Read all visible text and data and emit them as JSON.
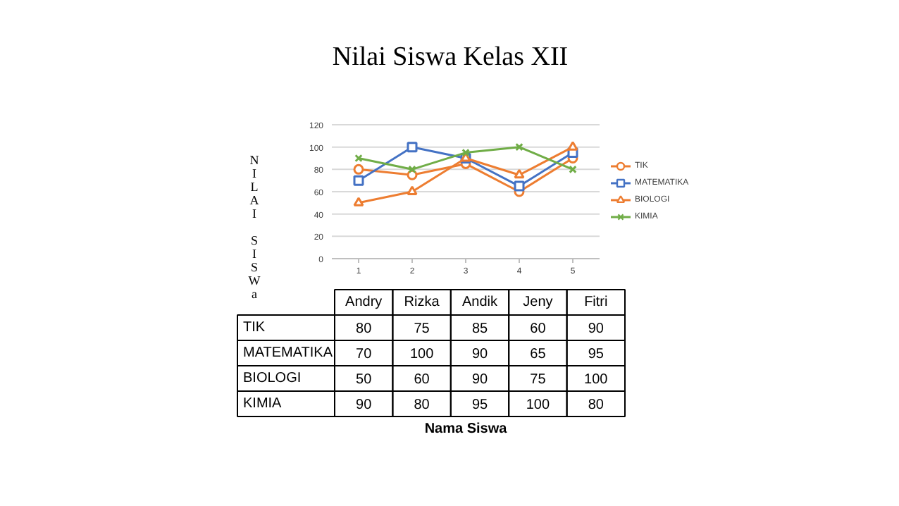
{
  "chart_data": {
    "type": "line",
    "title": "Nilai Siswa Kelas XII",
    "ylabel": "NILAI SISWa",
    "categories": [
      "1",
      "2",
      "3",
      "4",
      "5"
    ],
    "ylim": [
      0,
      120
    ],
    "yticks": [
      0,
      20,
      40,
      60,
      80,
      100,
      120
    ],
    "grid": "y",
    "legend": "right",
    "data_labels": true,
    "annotations": [
      "Andry",
      "Rizka",
      "Andik",
      "Jeny",
      "Fitri",
      "Nama Siswa"
    ],
    "series": [
      {
        "name": "TIK",
        "color": "#ed7d31",
        "marker": "circle",
        "values": [
          80,
          75,
          85,
          60,
          90
        ]
      },
      {
        "name": "MATEMATIKA",
        "color": "#4472c4",
        "marker": "square",
        "values": [
          70,
          100,
          90,
          65,
          95
        ]
      },
      {
        "name": "BIOLOGI",
        "color": "#ed7d31",
        "marker": "triangle",
        "values": [
          50,
          60,
          90,
          75,
          100
        ]
      },
      {
        "name": "KIMIA",
        "color": "#70ad47",
        "marker": "x",
        "values": [
          90,
          80,
          95,
          100,
          80
        ]
      }
    ]
  }
}
